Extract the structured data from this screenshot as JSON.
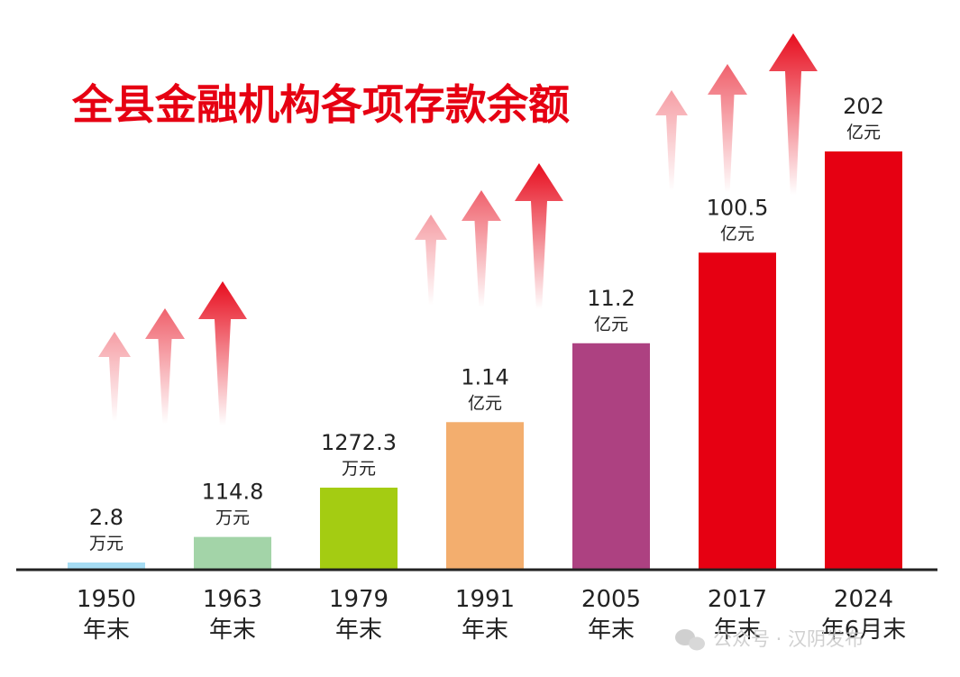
{
  "chart_data": {
    "type": "bar",
    "title": "全县金融机构各项存款余额",
    "categories": [
      {
        "year": "1950",
        "suffix": "年末"
      },
      {
        "year": "1963",
        "suffix": "年末"
      },
      {
        "year": "1979",
        "suffix": "年末"
      },
      {
        "year": "1991",
        "suffix": "年末"
      },
      {
        "year": "2005",
        "suffix": "年末"
      },
      {
        "year": "2017",
        "suffix": "年末"
      },
      {
        "year": "2024",
        "suffix": "年6月末"
      }
    ],
    "values": [
      {
        "label": "2.8",
        "unit": "万元",
        "value": 2.8,
        "unit_factor": 0.0001
      },
      {
        "label": "114.8",
        "unit": "万元",
        "value": 114.8,
        "unit_factor": 0.0001
      },
      {
        "label": "1272.3",
        "unit": "万元",
        "value": 1272.3,
        "unit_factor": 0.0001
      },
      {
        "label": "1.14",
        "unit": "亿元",
        "value": 1.14,
        "unit_factor": 1
      },
      {
        "label": "11.2",
        "unit": "亿元",
        "value": 11.2,
        "unit_factor": 1
      },
      {
        "label": "100.5",
        "unit": "亿元",
        "value": 100.5,
        "unit_factor": 1
      },
      {
        "label": "202",
        "unit": "亿元",
        "value": 202,
        "unit_factor": 1
      }
    ],
    "bar_colors": [
      "#a6dcf3",
      "#a3d4a8",
      "#a4cc12",
      "#f3ae6e",
      "#ad4181",
      "#e60012",
      "#e60012"
    ],
    "arrow_color": "#e60012",
    "grid": false,
    "legend": "none"
  },
  "watermark": {
    "text": "公众号 · 汉阴发布",
    "icon": "wechat-icon"
  }
}
